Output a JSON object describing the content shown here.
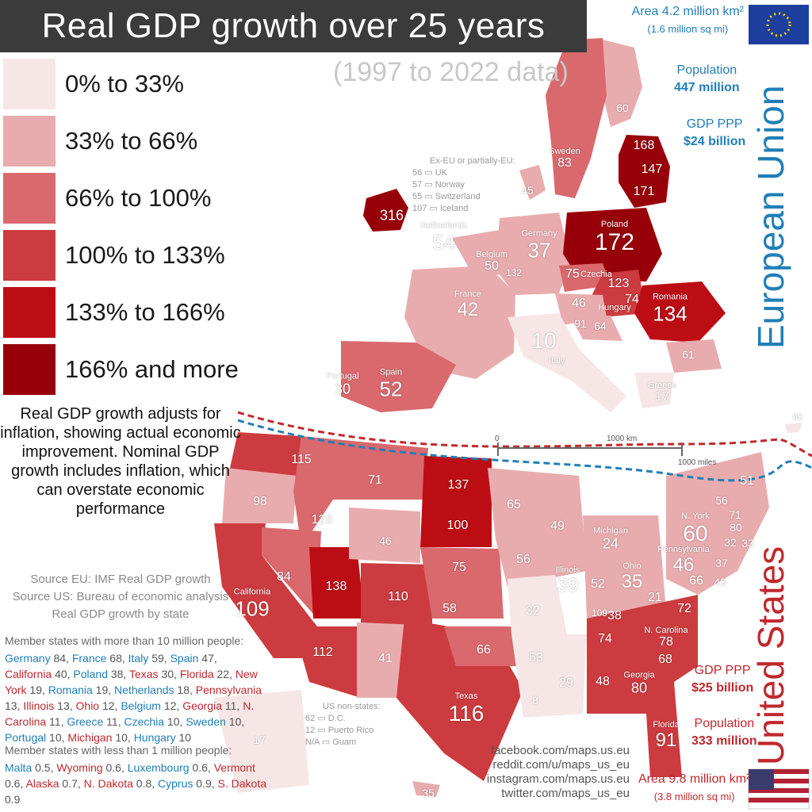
{
  "title": "Real GDP growth over 25 years",
  "subtitle": "(1997 to 2022 data)",
  "legend": [
    {
      "label": "0% to 33%",
      "color": "#f7e6e6"
    },
    {
      "label": "33% to 66%",
      "color": "#e9acae"
    },
    {
      "label": "66% to 100%",
      "color": "#d9696d"
    },
    {
      "label": "100% to 133%",
      "color": "#cc3b3f"
    },
    {
      "label": "133% to 166%",
      "color": "#bd0d14"
    },
    {
      "label": "166% and more",
      "color": "#980009"
    }
  ],
  "explanation": "Real GDP growth adjusts for inflation, showing actual economic improvement. Nominal GDP growth includes inflation, which can overstate economic performance",
  "sources": [
    "Source EU: IMF Real GDP growth",
    "Source US: Bureau of economic analysis",
    "Real GDP growth by state"
  ],
  "big_list": {
    "heading": "Member states with more than 10 million people:",
    "items": [
      {
        "name": "Germany",
        "value": "84",
        "bloc": "eu"
      },
      {
        "name": "France",
        "value": "68",
        "bloc": "eu"
      },
      {
        "name": "Italy",
        "value": "59",
        "bloc": "eu"
      },
      {
        "name": "Spain",
        "value": "47",
        "bloc": "eu"
      },
      {
        "name": "California",
        "value": "40",
        "bloc": "us"
      },
      {
        "name": "Poland",
        "value": "38",
        "bloc": "eu"
      },
      {
        "name": "Texas",
        "value": "30",
        "bloc": "us"
      },
      {
        "name": "Florida",
        "value": "22",
        "bloc": "us"
      },
      {
        "name": "New York",
        "value": "19",
        "bloc": "us"
      },
      {
        "name": "Romania",
        "value": "19",
        "bloc": "eu"
      },
      {
        "name": "Netherlands",
        "value": "18",
        "bloc": "eu"
      },
      {
        "name": "Pennsylvania",
        "value": "13",
        "bloc": "us"
      },
      {
        "name": "Illinois",
        "value": "13",
        "bloc": "us"
      },
      {
        "name": "Ohio",
        "value": "12",
        "bloc": "us"
      },
      {
        "name": "Belgium",
        "value": "12",
        "bloc": "eu"
      },
      {
        "name": "Georgia",
        "value": "11",
        "bloc": "us"
      },
      {
        "name": "N. Carolina",
        "value": "11",
        "bloc": "us"
      },
      {
        "name": "Greece",
        "value": "11",
        "bloc": "eu"
      },
      {
        "name": "Czechia",
        "value": "10",
        "bloc": "eu"
      },
      {
        "name": "Sweden",
        "value": "10",
        "bloc": "eu"
      },
      {
        "name": "Portugal",
        "value": "10",
        "bloc": "eu"
      },
      {
        "name": "Michigan",
        "value": "10",
        "bloc": "us"
      },
      {
        "name": "Hungary",
        "value": "10",
        "bloc": "eu"
      }
    ]
  },
  "small_list": {
    "heading": "Member states with less than 1 million people:",
    "items": [
      {
        "name": "Malta",
        "value": "0.5",
        "bloc": "eu"
      },
      {
        "name": "Wyoming",
        "value": "0.6",
        "bloc": "us"
      },
      {
        "name": "Luxembourg",
        "value": "0.6",
        "bloc": "eu"
      },
      {
        "name": "Vermont",
        "value": "0.6",
        "bloc": "us"
      },
      {
        "name": "Alaska",
        "value": "0.7",
        "bloc": "us"
      },
      {
        "name": "N. Dakota",
        "value": "0.8",
        "bloc": "us"
      },
      {
        "name": "Cyprus",
        "value": "0.9",
        "bloc": "eu"
      },
      {
        "name": "S. Dakota",
        "value": "0.9",
        "bloc": "us"
      }
    ]
  },
  "eu": {
    "name": "European Union",
    "area": "Area 4.2 million km²",
    "area_mi": "(1.6 million sq mi)",
    "population_label": "Population",
    "population": "447 million",
    "gdp_label": "GDP PPP",
    "gdp": "$24 billion"
  },
  "us": {
    "name": "United States",
    "area": "Area 9.8 million km²",
    "area_mi": "(3.8 million sq mi)",
    "population_label": "Population",
    "population": "333 million",
    "gdp_label": "GDP PPP",
    "gdp": "$25 billion"
  },
  "ex_eu": {
    "heading": "Ex-EU or partially-EU:",
    "items": [
      {
        "value": "56",
        "name": "UK"
      },
      {
        "value": "57",
        "name": "Norway"
      },
      {
        "value": "55",
        "name": "Switzerland"
      },
      {
        "value": "107",
        "name": "Iceland"
      }
    ]
  },
  "us_non_states": {
    "heading": "US non-states:",
    "items": [
      {
        "value": "62",
        "name": "D.C."
      },
      {
        "value": "12",
        "name": "Puerto Rico"
      },
      {
        "value": "N/A",
        "name": "Guam"
      }
    ]
  },
  "scale": {
    "km": "1000 km",
    "miles": "1000 miles",
    "zero": "0"
  },
  "social": [
    "facebook.com/maps.us.eu",
    "reddit.com/u/maps_us_eu",
    "instagram.com/maps.us.eu",
    "twitter.com/maps_us_eu"
  ],
  "eu_labels": [
    {
      "name": "",
      "value": "60"
    },
    {
      "name": "Sweden",
      "value": "83"
    },
    {
      "name": "",
      "value": "168"
    },
    {
      "name": "",
      "value": "147"
    },
    {
      "name": "",
      "value": "171"
    },
    {
      "name": "",
      "value": "316"
    },
    {
      "name": "",
      "value": "45"
    },
    {
      "name": "Germany",
      "value": "37"
    },
    {
      "name": "Poland",
      "value": "172"
    },
    {
      "name": "Netherlands",
      "value": "54"
    },
    {
      "name": "Belgium",
      "value": "50"
    },
    {
      "name": "",
      "value": "132"
    },
    {
      "name": "",
      "value": "75"
    },
    {
      "name": "Czechia",
      "value": ""
    },
    {
      "name": "",
      "value": "123"
    },
    {
      "name": "",
      "value": "74"
    },
    {
      "name": "Hungary",
      "value": ""
    },
    {
      "name": "Romania",
      "value": "134"
    },
    {
      "name": "France",
      "value": "42"
    },
    {
      "name": "",
      "value": "46"
    },
    {
      "name": "",
      "value": "91"
    },
    {
      "name": "",
      "value": "64"
    },
    {
      "name": "",
      "value": "10"
    },
    {
      "name": "Italy",
      "value": ""
    },
    {
      "name": "",
      "value": "61"
    },
    {
      "name": "Portugal",
      "value": "30"
    },
    {
      "name": "Spain",
      "value": "52"
    },
    {
      "name": "Greece",
      "value": "17"
    },
    {
      "name": "",
      "value": "95"
    }
  ],
  "us_labels": [
    {
      "name": "",
      "value": "115"
    },
    {
      "name": "",
      "value": "98"
    },
    {
      "name": "",
      "value": "128"
    },
    {
      "name": "",
      "value": "71"
    },
    {
      "name": "",
      "value": "137"
    },
    {
      "name": "",
      "value": "100"
    },
    {
      "name": "",
      "value": "46"
    },
    {
      "name": "",
      "value": "84"
    },
    {
      "name": "California",
      "value": "109"
    },
    {
      "name": "",
      "value": "138"
    },
    {
      "name": "",
      "value": "110"
    },
    {
      "name": "",
      "value": "75"
    },
    {
      "name": "",
      "value": "112"
    },
    {
      "name": "",
      "value": "41"
    },
    {
      "name": "Texas",
      "value": "116"
    },
    {
      "name": "",
      "value": "66"
    },
    {
      "name": "",
      "value": "58"
    },
    {
      "name": "",
      "value": "65"
    },
    {
      "name": "",
      "value": "56"
    },
    {
      "name": "",
      "value": "32"
    },
    {
      "name": "",
      "value": "53"
    },
    {
      "name": "",
      "value": "29"
    },
    {
      "name": "",
      "value": "8"
    },
    {
      "name": "",
      "value": "49"
    },
    {
      "name": "Illinois",
      "value": "39"
    },
    {
      "name": "",
      "value": "52"
    },
    {
      "name": "Ohio",
      "value": "35"
    },
    {
      "name": "Michigan",
      "value": "24"
    },
    {
      "name": "",
      "value": "38"
    },
    {
      "name": "",
      "value": "21"
    },
    {
      "name": "",
      "value": "74"
    },
    {
      "name": "",
      "value": "48"
    },
    {
      "name": "Georgia",
      "value": "80"
    },
    {
      "name": "",
      "value": "68"
    },
    {
      "name": "N. Carolina",
      "value": "78"
    },
    {
      "name": "",
      "value": "72"
    },
    {
      "name": "Pennsylvania",
      "value": "46"
    },
    {
      "name": "N. York",
      "value": "60"
    },
    {
      "name": "Florida",
      "value": "91"
    },
    {
      "name": "",
      "value": "66"
    },
    {
      "name": "",
      "value": "43"
    },
    {
      "name": "",
      "value": "37"
    },
    {
      "name": "",
      "value": "32"
    },
    {
      "name": "",
      "value": "33"
    },
    {
      "name": "",
      "value": "80"
    },
    {
      "name": "",
      "value": "71"
    },
    {
      "name": "",
      "value": "56"
    },
    {
      "name": "",
      "value": "51"
    },
    {
      "name": "",
      "value": "17"
    },
    {
      "name": "",
      "value": "35"
    },
    {
      "name": "",
      "value": "109"
    }
  ]
}
